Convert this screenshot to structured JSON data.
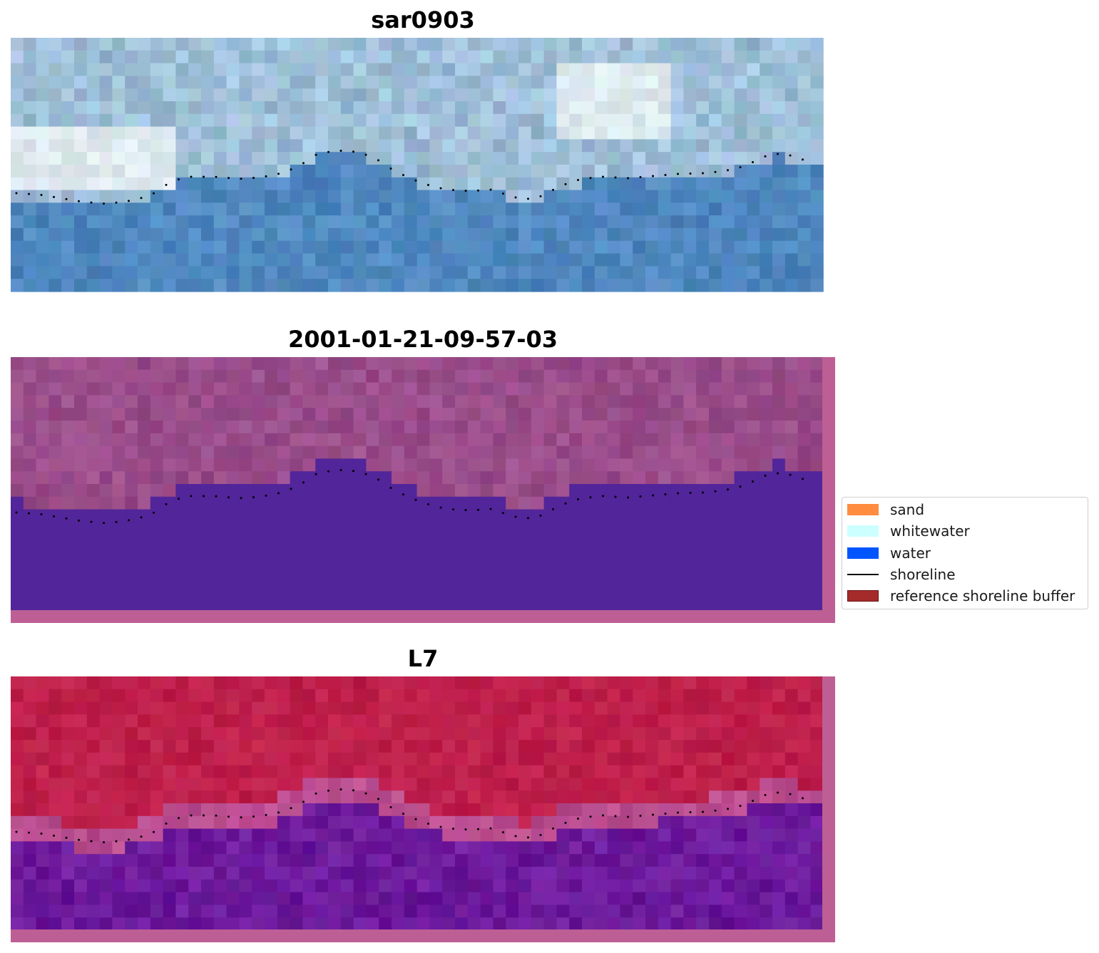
{
  "panels": [
    {
      "title": "sar0903"
    },
    {
      "title": "2001-01-21-09-57-03"
    },
    {
      "title": "L7"
    }
  ],
  "legend": {
    "items": [
      {
        "label": "sand",
        "color": "#ff8c3f",
        "kind": "patch"
      },
      {
        "label": "whitewater",
        "color": "#ccffff",
        "kind": "patch"
      },
      {
        "label": "water",
        "color": "#0055ff",
        "kind": "patch"
      },
      {
        "label": "shoreline",
        "color": "#000000",
        "kind": "line"
      },
      {
        "label": "reference shoreline buffer",
        "color": "#a52a2a",
        "kind": "patch"
      }
    ]
  },
  "colors": {
    "rgb_water": "#4f88bf",
    "rgb_land": "#9fbfd8",
    "classified_water": "#52259a",
    "classified_land": "#9a4d8a",
    "classified_border": "#bd5f94",
    "index_land": "#be1f4a",
    "index_water": "#6c1a9c",
    "index_border": "#bd5f94"
  }
}
